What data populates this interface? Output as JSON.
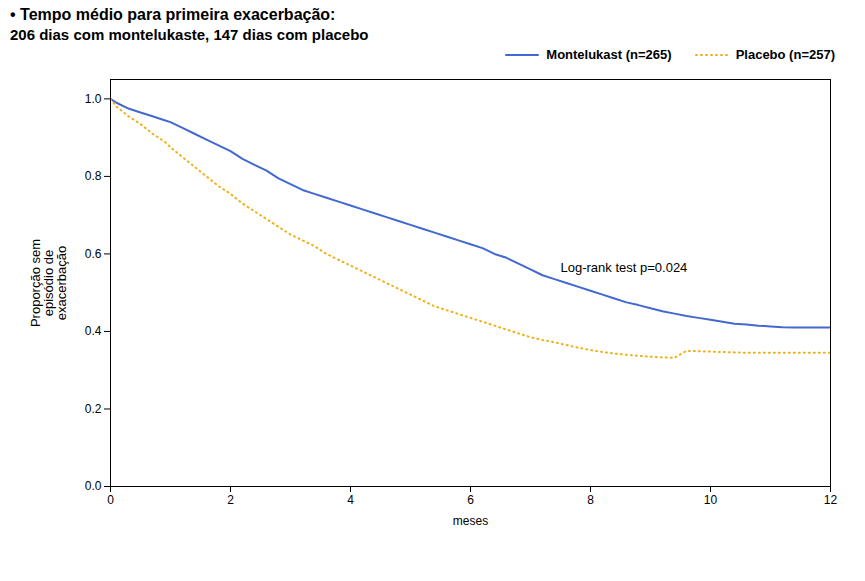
{
  "chart_data": {
    "type": "line",
    "title": "• Tempo médio para primeira exacerbação:",
    "subtitle": "206 dias com montelukaste, 147 dias com placebo",
    "x_label": "meses",
    "y_label": "Proporção sem\nepisódio de\nexacerbação",
    "x": [
      0,
      0.1,
      0.3,
      0.5,
      0.7,
      0.9,
      1.0,
      1.2,
      1.4,
      1.6,
      1.8,
      2.0,
      2.2,
      2.4,
      2.6,
      2.8,
      3.0,
      3.2,
      3.4,
      3.6,
      3.8,
      4.0,
      4.2,
      4.4,
      4.6,
      4.8,
      5.0,
      5.2,
      5.4,
      5.6,
      5.8,
      6.0,
      6.2,
      6.4,
      6.6,
      6.8,
      7.0,
      7.2,
      7.4,
      7.6,
      7.8,
      8.0,
      8.2,
      8.4,
      8.6,
      8.8,
      9.0,
      9.2,
      9.4,
      9.6,
      9.8,
      10.0,
      10.2,
      10.4,
      10.6,
      10.8,
      11.0,
      11.2,
      11.4,
      11.6,
      11.8,
      12.0
    ],
    "series": [
      {
        "name": "Montelukast (n=265)",
        "line_style": "solid",
        "values": [
          1.0,
          0.99,
          0.975,
          0.965,
          0.955,
          0.945,
          0.94,
          0.925,
          0.91,
          0.895,
          0.88,
          0.865,
          0.845,
          0.83,
          0.815,
          0.795,
          0.78,
          0.765,
          0.755,
          0.745,
          0.735,
          0.725,
          0.715,
          0.705,
          0.695,
          0.685,
          0.675,
          0.665,
          0.655,
          0.645,
          0.635,
          0.625,
          0.615,
          0.6,
          0.59,
          0.575,
          0.56,
          0.545,
          0.535,
          0.525,
          0.515,
          0.505,
          0.495,
          0.485,
          0.475,
          0.468,
          0.46,
          0.452,
          0.446,
          0.44,
          0.435,
          0.43,
          0.425,
          0.42,
          0.418,
          0.415,
          0.413,
          0.411,
          0.41,
          0.41,
          0.41,
          0.41
        ]
      },
      {
        "name": "Placebo (n=257)",
        "line_style": "dotted",
        "values": [
          1.0,
          0.98,
          0.955,
          0.935,
          0.91,
          0.89,
          0.875,
          0.85,
          0.825,
          0.8,
          0.775,
          0.755,
          0.73,
          0.71,
          0.69,
          0.67,
          0.65,
          0.635,
          0.62,
          0.6,
          0.585,
          0.57,
          0.555,
          0.54,
          0.525,
          0.51,
          0.495,
          0.48,
          0.465,
          0.455,
          0.445,
          0.435,
          0.425,
          0.415,
          0.405,
          0.395,
          0.385,
          0.378,
          0.372,
          0.365,
          0.358,
          0.352,
          0.347,
          0.343,
          0.34,
          0.337,
          0.335,
          0.333,
          0.332,
          0.35,
          0.349,
          0.348,
          0.347,
          0.346,
          0.345,
          0.345,
          0.345,
          0.345,
          0.345,
          0.345,
          0.345,
          0.345
        ]
      }
    ],
    "annotations": [
      {
        "text": "Log-rank test p=0.024",
        "x": 7.5,
        "y": 0.565
      }
    ],
    "xlim": [
      0,
      12
    ],
    "xticks": [
      0,
      2,
      4,
      6,
      8,
      10,
      12
    ],
    "ylim": [
      0.0,
      1.05
    ],
    "yticks": [
      {
        "value": 0,
        "label": "0.0"
      },
      0.2,
      0.4,
      0.6,
      0.8,
      {
        "value": 1,
        "label": "1.0"
      }
    ],
    "grid": false,
    "legend": "upper right"
  }
}
